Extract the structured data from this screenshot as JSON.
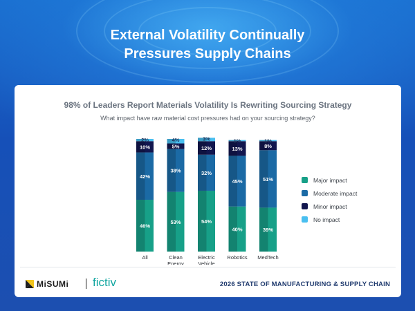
{
  "headline": {
    "line1": "External Volatility Continually",
    "line2": "Pressures Supply Chains"
  },
  "card": {
    "title": "98% of Leaders Report Materials Volatility Is Rewriting Sourcing Strategy",
    "subtitle": "What impact have raw material cost pressures had on your sourcing strategy?"
  },
  "footer": {
    "logo_left": "MiSUMi",
    "logo_right": "fictiv",
    "report": "2026 STATE OF MANUFACTURING & SUPPLY CHAIN"
  },
  "colors": {
    "major": "#17a088",
    "moderate": "#1b6aa5",
    "minor": "#12164e",
    "none": "#49bff0"
  },
  "chart_data": {
    "type": "bar",
    "stacked": true,
    "title": "98% of Leaders Report Materials Volatility Is Rewriting Sourcing Strategy",
    "subtitle": "What impact have raw material cost pressures had on your sourcing strategy?",
    "categories": [
      [
        "All"
      ],
      [
        "Clean",
        "Energy"
      ],
      [
        "Electric",
        "Vehicle"
      ],
      [
        "Robotics"
      ],
      [
        "MedTech"
      ]
    ],
    "series": [
      {
        "name": "Major impact",
        "color": "#17a088",
        "values": [
          46,
          53,
          54,
          40,
          39
        ]
      },
      {
        "name": "Moderate impact",
        "color": "#1b6aa5",
        "values": [
          42,
          38,
          32,
          45,
          51
        ]
      },
      {
        "name": "Minor impact",
        "color": "#12164e",
        "values": [
          10,
          5,
          12,
          13,
          8
        ]
      },
      {
        "name": "No impact",
        "color": "#49bff0",
        "values": [
          2,
          4,
          3,
          1,
          1
        ]
      }
    ],
    "unit": "%",
    "ylim": [
      0,
      100
    ],
    "legend_position": "right"
  }
}
